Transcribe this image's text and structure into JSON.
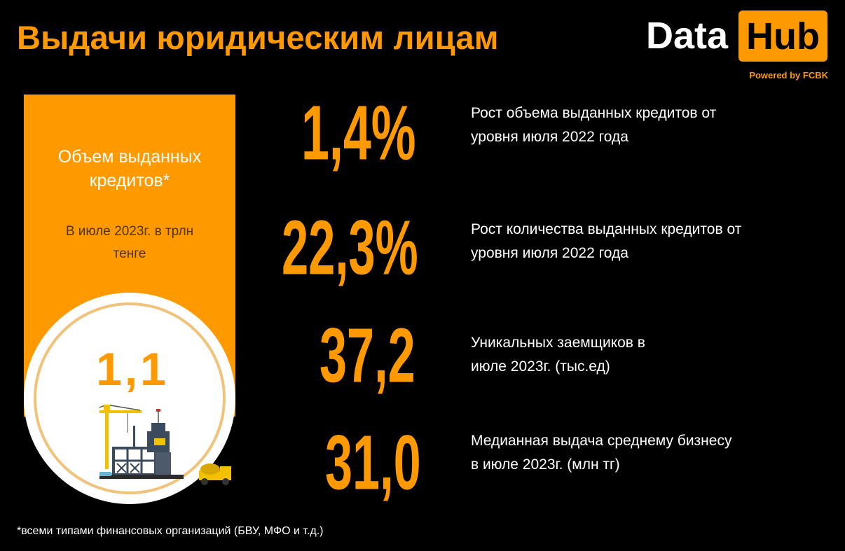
{
  "title": "Выдачи юридическим лицам",
  "logo": {
    "word": "Data",
    "badge": "Hub",
    "powered": "Powered by FCBK"
  },
  "panel": {
    "heading_line1": "Объем выданных",
    "heading_line2": "кредитов*",
    "sub_line1": "В июле 2023г. в трлн",
    "sub_line2": "тенге",
    "value": "1,1"
  },
  "stats": [
    {
      "value": "1,4%",
      "desc_line1": "Рост объема выданных кредитов от",
      "desc_line2": "уровня июля 2022 года"
    },
    {
      "value": "22,3%",
      "desc_line1": "Рост количества выданных кредитов от",
      "desc_line2": "уровня июля 2022 года"
    },
    {
      "value": "37,2",
      "desc_line1": "Уникальных заемщиков в",
      "desc_line2": "июле 2023г. (тыс.ед)"
    },
    {
      "value": "31,0",
      "desc_line1": "Медианная выдача среднему бизнесу",
      "desc_line2": "в июле 2023г. (млн тг)"
    }
  ],
  "footnote": "*всеми типами финансовых организаций (БВУ, МФО и т.д.)",
  "colors": {
    "accent": "#ff9900",
    "background": "#000000",
    "text": "#ffffff"
  },
  "illustration_icon": "construction-site-icon"
}
